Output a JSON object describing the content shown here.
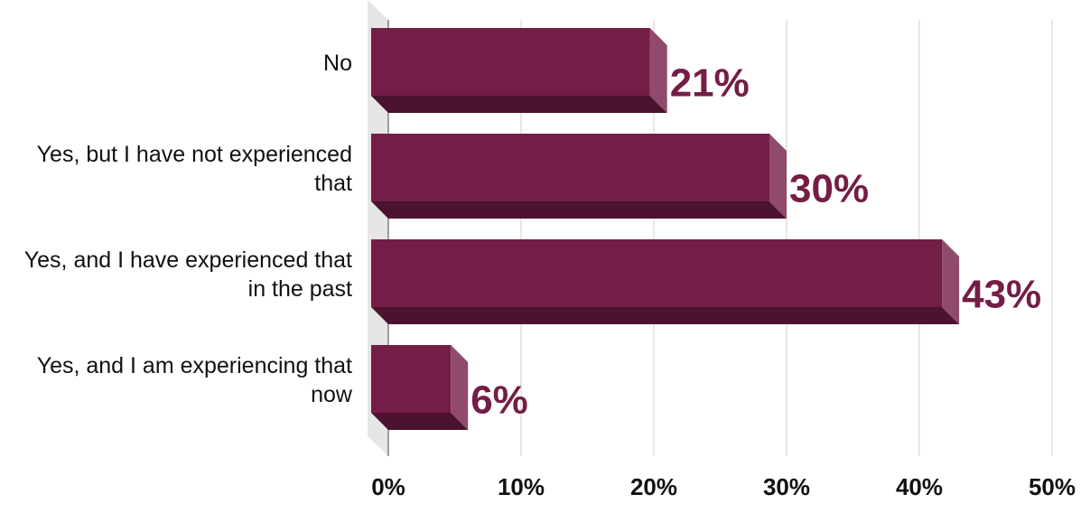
{
  "chart_data": {
    "type": "bar3d_horizontal",
    "categories": [
      "No",
      "Yes, but I have not experienced that",
      "Yes, and I have experienced that in the past",
      "Yes, and I am experiencing that now"
    ],
    "values": [
      21,
      30,
      43,
      6
    ],
    "value_labels": [
      "21%",
      "30%",
      "43%",
      "6%"
    ],
    "color": "#741d47",
    "xlim": [
      0,
      50
    ],
    "xticks": [
      {
        "value": 0,
        "label": "0%"
      },
      {
        "value": 10,
        "label": "10%"
      },
      {
        "value": 20,
        "label": "20%"
      },
      {
        "value": 30,
        "label": "30%"
      },
      {
        "value": 40,
        "label": "40%"
      },
      {
        "value": 50,
        "label": "50%"
      }
    ],
    "grid": true
  }
}
